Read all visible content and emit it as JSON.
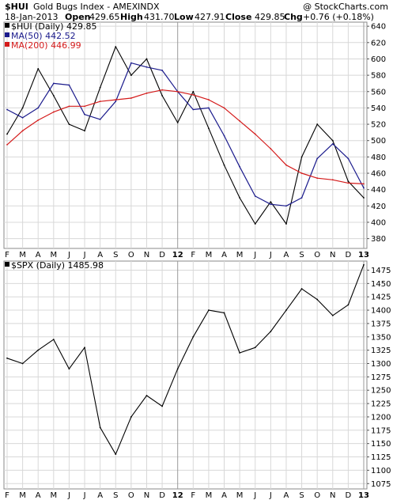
{
  "header": {
    "symbol": "$HUI",
    "name": "Gold Bugs Index - AMEX",
    "exchange": "INDX",
    "watermark": "@ StockCharts.com",
    "date": "18-Jan-2013",
    "open_label": "Open",
    "open": "429.65",
    "high_label": "High",
    "high": "431.70",
    "low_label": "Low",
    "low": "427.91",
    "close_label": "Close",
    "close": "429.85",
    "chg_label": "Chg",
    "chg": "+0.76 (+0.18%)"
  },
  "legend": {
    "hui": "$HUI (Daily) 429.85",
    "ma50": "MA(50) 442.52",
    "ma200": "MA(200) 446.99",
    "spx": "$SPX (Daily) 1485.98"
  },
  "colors": {
    "price": "#000000",
    "ma50": "#1a1a8c",
    "ma200": "#d41a1a",
    "grid": "#d8d8d8",
    "border": "#8a8a8a"
  },
  "chart_data": [
    {
      "type": "line",
      "x": [
        "2011-02",
        "2011-03",
        "2011-04",
        "2011-05",
        "2011-06",
        "2011-07",
        "2011-08",
        "2011-09",
        "2011-10",
        "2011-11",
        "2011-12",
        "2012-01",
        "2012-02",
        "2012-03",
        "2012-04",
        "2012-05",
        "2012-06",
        "2012-07",
        "2012-08",
        "2012-09",
        "2012-10",
        "2012-11",
        "2012-12",
        "2013-01"
      ],
      "xticks": [
        "F",
        "M",
        "A",
        "M",
        "J",
        "J",
        "A",
        "S",
        "O",
        "N",
        "D",
        "12",
        "F",
        "M",
        "A",
        "M",
        "J",
        "J",
        "A",
        "S",
        "O",
        "N",
        "D",
        "13"
      ],
      "series": [
        {
          "name": "$HUI",
          "values": [
            508,
            540,
            588,
            555,
            520,
            512,
            565,
            615,
            580,
            600,
            555,
            522,
            560,
            515,
            470,
            430,
            398,
            425,
            398,
            480,
            520,
            500,
            450,
            430
          ]
        },
        {
          "name": "MA(50)",
          "values": [
            538,
            528,
            540,
            570,
            568,
            532,
            526,
            548,
            595,
            590,
            586,
            560,
            538,
            540,
            506,
            468,
            432,
            422,
            420,
            430,
            478,
            496,
            478,
            442
          ]
        },
        {
          "name": "MA(200)",
          "values": [
            495,
            512,
            525,
            535,
            542,
            542,
            548,
            550,
            552,
            558,
            562,
            560,
            556,
            550,
            540,
            524,
            508,
            490,
            470,
            460,
            454,
            452,
            448,
            447
          ]
        }
      ],
      "yticks": [
        380,
        400,
        420,
        440,
        460,
        480,
        500,
        520,
        540,
        560,
        580,
        600,
        620,
        640
      ],
      "ylim": [
        368,
        645
      ]
    },
    {
      "type": "line",
      "x": [
        "2011-02",
        "2011-03",
        "2011-04",
        "2011-05",
        "2011-06",
        "2011-07",
        "2011-08",
        "2011-09",
        "2011-10",
        "2011-11",
        "2011-12",
        "2012-01",
        "2012-02",
        "2012-03",
        "2012-04",
        "2012-05",
        "2012-06",
        "2012-07",
        "2012-08",
        "2012-09",
        "2012-10",
        "2012-11",
        "2012-12",
        "2013-01"
      ],
      "xticks": [
        "F",
        "M",
        "A",
        "M",
        "J",
        "J",
        "A",
        "S",
        "O",
        "N",
        "D",
        "12",
        "F",
        "M",
        "A",
        "M",
        "J",
        "J",
        "A",
        "S",
        "O",
        "N",
        "D",
        "13"
      ],
      "series": [
        {
          "name": "$SPX",
          "values": [
            1310,
            1300,
            1325,
            1345,
            1290,
            1330,
            1180,
            1130,
            1200,
            1240,
            1220,
            1290,
            1350,
            1400,
            1395,
            1320,
            1330,
            1360,
            1400,
            1440,
            1420,
            1390,
            1410,
            1485
          ]
        }
      ],
      "yticks": [
        1075,
        1100,
        1125,
        1150,
        1175,
        1200,
        1225,
        1250,
        1275,
        1300,
        1325,
        1350,
        1375,
        1400,
        1425,
        1450,
        1475
      ],
      "ylim": [
        1065,
        1492
      ]
    }
  ]
}
